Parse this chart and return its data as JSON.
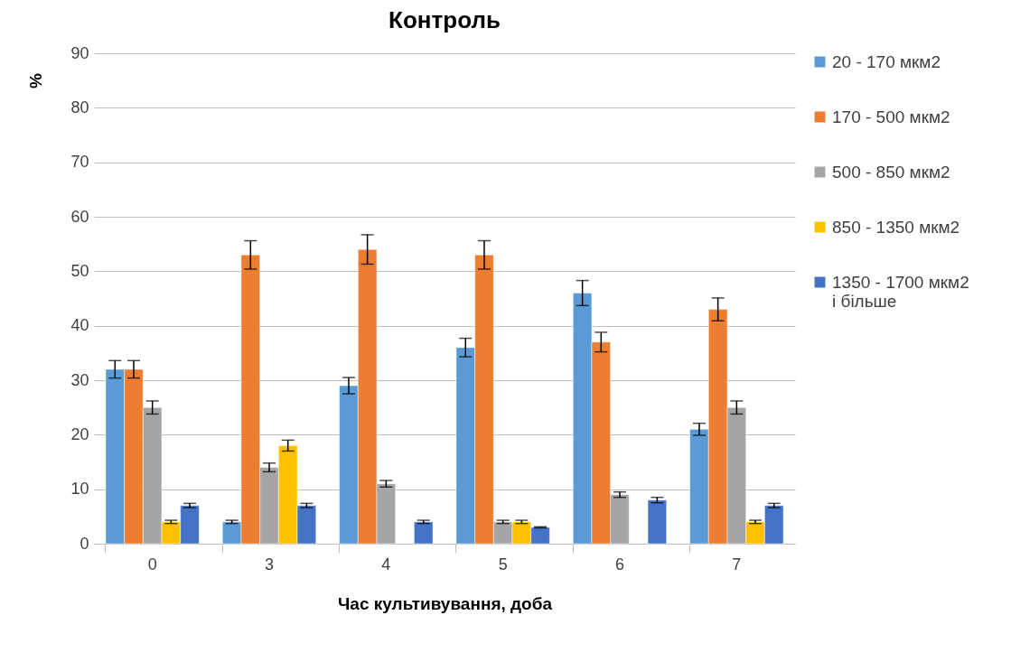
{
  "chart_data": {
    "type": "bar",
    "title": "Контроль",
    "xlabel": "Час культивування, доба",
    "ylabel": "%",
    "categories": [
      "0",
      "3",
      "4",
      "5",
      "6",
      "7"
    ],
    "ylim": [
      0,
      90
    ],
    "yticks": [
      0,
      10,
      20,
      30,
      40,
      50,
      60,
      70,
      80,
      90
    ],
    "grid": "y",
    "legend": "right",
    "series": [
      {
        "name": "20 - 170 мкм2",
        "color": "#5b9bd5",
        "values": [
          32,
          4,
          29,
          36,
          46,
          21
        ],
        "errors": [
          1.6,
          0.3,
          1.5,
          1.7,
          2.3,
          1.1
        ]
      },
      {
        "name": "170 - 500 мкм2",
        "color": "#ed7d31",
        "values": [
          32,
          53,
          54,
          53,
          37,
          43
        ],
        "errors": [
          1.6,
          2.6,
          2.7,
          2.6,
          1.8,
          2.1
        ]
      },
      {
        "name": "500 - 850 мкм2",
        "color": "#a5a5a5",
        "values": [
          25,
          14,
          11,
          4,
          9,
          25
        ],
        "errors": [
          1.2,
          0.8,
          0.6,
          0.3,
          0.5,
          1.2
        ]
      },
      {
        "name": "850 - 1350 мкм2",
        "color": "#ffc000",
        "values": [
          4,
          18,
          null,
          4,
          null,
          4
        ],
        "errors": [
          0.3,
          1.0,
          null,
          0.3,
          null,
          0.3
        ]
      },
      {
        "name": "1350 - 1700 мкм2 і більше",
        "color": "#4472c4",
        "values": [
          7,
          7,
          4,
          3,
          8,
          7
        ],
        "errors": [
          0.4,
          0.4,
          0.3,
          0.1,
          0.5,
          0.4
        ]
      }
    ]
  }
}
